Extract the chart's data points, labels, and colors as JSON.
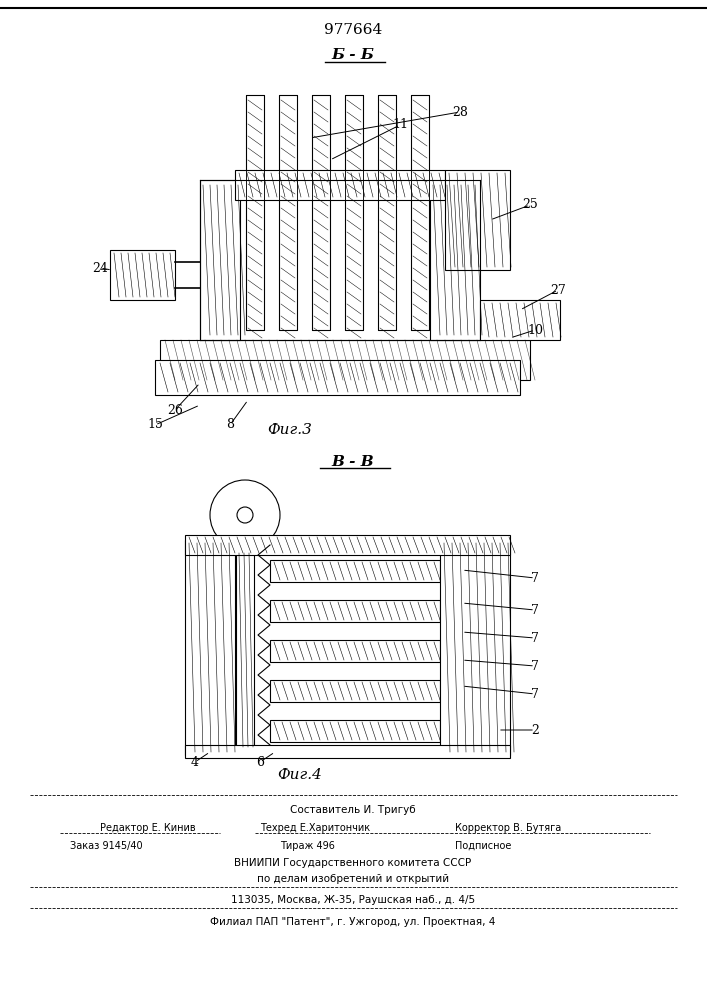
{
  "patent_number": "977664",
  "section_label_top": "Б - Б",
  "section_label_mid": "В - В",
  "fig3_label": "Фиг.3",
  "fig4_label": "Фиг.4",
  "footer_line1": "Составитель И. Тригуб",
  "footer_line2": "Редактор Е. Кинив      Техред Е.Харитончик  Корректор В. Бутяга",
  "footer_line3": "Заказ 9145/40          Тираж 496               Подписное",
  "footer_line4": "ВНИИПИ Государственного комитета СССР",
  "footer_line5": "по делам изобретений и открытий",
  "footer_line6": "113035, Москва, Ж-35, Раушская наб., д. 4/5",
  "footer_line7": "Филиал ПАП \"Патент\", г. Ужгород, ул. Проектная, 4",
  "bg_color": "#ffffff",
  "line_color": "#000000",
  "hatch_color": "#000000"
}
